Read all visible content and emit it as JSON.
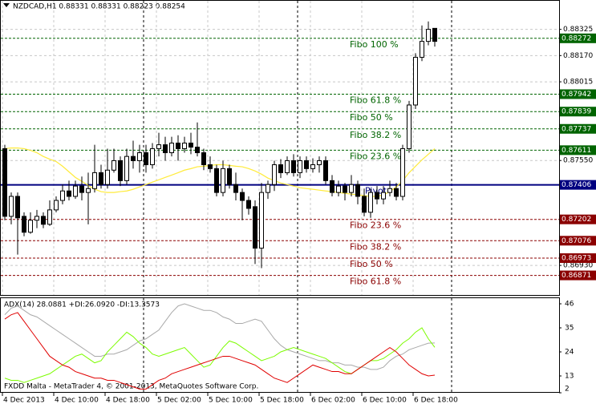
{
  "chart_data": {
    "type": "candlestick",
    "header": "NZDCAD,H1  0.88331 0.88331 0.88223 0.88254",
    "footer": "FXDD Malta - MetaTrader 4, © 2001-2013, MetaQuotes Software Corp.",
    "categories": [
      "4 Dec 2013",
      null,
      null,
      null,
      null,
      null,
      null,
      null,
      "4 Dec 10:00",
      null,
      null,
      null,
      null,
      null,
      null,
      null,
      "4 Dec 18:00",
      null,
      null,
      null,
      null,
      null,
      null,
      null,
      "5 Dec 02:00",
      null,
      null,
      null,
      null,
      null,
      null,
      null,
      "5 Dec 10:00",
      null,
      null,
      null,
      null,
      null,
      null,
      null,
      "5 Dec 18:00",
      null,
      null,
      null,
      null,
      null,
      null,
      null,
      "6 Dec 02:00",
      null,
      null,
      null,
      null,
      null,
      null,
      null,
      "6 Dec 10:00",
      null,
      null,
      null,
      null,
      null,
      null,
      null,
      "6 Dec 18:00",
      null,
      null,
      null
    ],
    "open": [
      0.8762,
      0.8722,
      0.87338,
      0.8722,
      0.87126,
      0.87197,
      0.8722,
      0.87173,
      0.87258,
      0.87314,
      0.8737,
      0.87338,
      0.87399,
      0.87361,
      0.87384,
      0.87478,
      0.87408,
      0.87493,
      0.87549,
      0.87431,
      0.87574,
      0.87549,
      0.87596,
      0.87525,
      0.8762,
      0.87643,
      0.87596,
      0.87653,
      0.8762,
      0.87653,
      0.87629,
      0.87596,
      0.87525,
      0.87502,
      0.87361,
      0.87502,
      0.87408,
      0.87361,
      0.87314,
      0.87277,
      0.87032,
      0.87361,
      0.87408,
      0.87525,
      0.87478,
      0.87549,
      0.87478,
      0.87549,
      0.87502,
      0.87525,
      0.87549,
      0.87431,
      0.87361,
      0.87399,
      0.87361,
      0.87408,
      0.87338,
      0.87244,
      0.87361,
      0.87323,
      0.87361,
      0.87384,
      0.87338,
      0.8762,
      0.87878,
      0.8816,
      0.88254,
      0.88331
    ],
    "high": [
      0.87643,
      0.87361,
      0.87361,
      0.87244,
      0.87244,
      0.87258,
      0.87244,
      0.87314,
      0.87338,
      0.87408,
      0.87431,
      0.87431,
      0.87455,
      0.87478,
      0.87643,
      0.87525,
      0.8762,
      0.8762,
      0.87574,
      0.8762,
      0.87667,
      0.87643,
      0.87643,
      0.87653,
      0.87714,
      0.8769,
      0.8769,
      0.87699,
      0.8769,
      0.87714,
      0.87775,
      0.8762,
      0.87574,
      0.87525,
      0.87549,
      0.87525,
      0.87478,
      0.87384,
      0.87338,
      0.87314,
      0.87417,
      0.87431,
      0.87549,
      0.87558,
      0.87574,
      0.87587,
      0.87574,
      0.87574,
      0.87563,
      0.87574,
      0.87574,
      0.87464,
      0.87431,
      0.87417,
      0.87464,
      0.87431,
      0.87384,
      0.87384,
      0.87399,
      0.87399,
      0.87431,
      0.87417,
      0.87643,
      0.87902,
      0.88184,
      0.88348,
      0.88372,
      0.88331
    ],
    "low": [
      0.87197,
      0.87173,
      0.86994,
      0.87102,
      0.87117,
      0.8715,
      0.8715,
      0.87164,
      0.87244,
      0.87291,
      0.87314,
      0.87323,
      0.87314,
      0.87173,
      0.87361,
      0.87384,
      0.87384,
      0.87478,
      0.87399,
      0.87408,
      0.87502,
      0.87478,
      0.87478,
      0.87502,
      0.87574,
      0.87549,
      0.87574,
      0.87549,
      0.87596,
      0.87587,
      0.87574,
      0.87493,
      0.87478,
      0.87338,
      0.87338,
      0.87384,
      0.87314,
      0.87197,
      0.8723,
      0.86938,
      0.86914,
      0.87323,
      0.8737,
      0.87446,
      0.87464,
      0.87455,
      0.87446,
      0.87478,
      0.87478,
      0.87478,
      0.87408,
      0.87338,
      0.87338,
      0.87314,
      0.87338,
      0.87291,
      0.8722,
      0.87211,
      0.87291,
      0.87291,
      0.87338,
      0.87314,
      0.87314,
      0.87596,
      0.87854,
      0.88137,
      0.88231,
      0.88223
    ],
    "close": [
      0.8722,
      0.87338,
      0.87211,
      0.87126,
      0.87197,
      0.8722,
      0.87173,
      0.87258,
      0.87314,
      0.8737,
      0.87338,
      0.87399,
      0.87361,
      0.87384,
      0.87478,
      0.87408,
      0.87493,
      0.87549,
      0.87431,
      0.87574,
      0.87549,
      0.87596,
      0.87525,
      0.8762,
      0.87643,
      0.87596,
      0.87653,
      0.8762,
      0.87653,
      0.87629,
      0.87596,
      0.87525,
      0.87502,
      0.87361,
      0.87502,
      0.87408,
      0.87361,
      0.87314,
      0.87267,
      0.87032,
      0.87361,
      0.87408,
      0.87525,
      0.87478,
      0.87549,
      0.87478,
      0.87549,
      0.87502,
      0.87525,
      0.87549,
      0.87431,
      0.87361,
      0.87399,
      0.87361,
      0.87408,
      0.87338,
      0.87244,
      0.87361,
      0.87323,
      0.87361,
      0.87384,
      0.87338,
      0.8762,
      0.87878,
      0.8816,
      0.88254,
      0.88325,
      0.88254
    ],
    "ma": {
      "color": "#ffeb3b",
      "values": [
        0.8762,
        0.87624,
        0.87624,
        0.8762,
        0.8761,
        0.87596,
        0.87574,
        0.87558,
        0.87544,
        0.87516,
        0.87483,
        0.8745,
        0.87427,
        0.87403,
        0.8738,
        0.87366,
        0.87361,
        0.87361,
        0.87366,
        0.8737,
        0.8738,
        0.87394,
        0.87408,
        0.87422,
        0.87436,
        0.8745,
        0.87464,
        0.87478,
        0.87493,
        0.87502,
        0.87513,
        0.87516,
        0.87521,
        0.87525,
        0.87525,
        0.87521,
        0.87516,
        0.87513,
        0.87502,
        0.87488,
        0.87469,
        0.87446,
        0.87431,
        0.87417,
        0.87408,
        0.87399,
        0.87389,
        0.87384,
        0.8738,
        0.87375,
        0.8737,
        0.87366,
        0.87361,
        0.87356,
        0.87351,
        0.87347,
        0.87342,
        0.87338,
        0.87338,
        0.87347,
        0.87366,
        0.87394,
        0.87431,
        0.87478,
        0.87516,
        0.87554,
        0.87587,
        0.8762
      ]
    },
    "ylim": [
      0.8676,
      0.88489
    ],
    "yticks": [
      0.88325,
      {
        "value": 0.8817,
        "label": "0.88170"
      },
      0.88015,
      {
        "value": 0.8755,
        "label": "0.87550"
      },
      {
        "value": 0.8693,
        "label": "0.86930"
      }
    ],
    "grid": true,
    "levels": [
      {
        "label": "Fibo 100 %",
        "value": 0.88272,
        "color": "#006400"
      },
      {
        "label": "Fibo 61.8 %",
        "value": 0.87942,
        "color": "#006400"
      },
      {
        "label": "Fibo 50 %",
        "value": 0.87839,
        "color": "#006400"
      },
      {
        "label": "Fibo 38.2 %",
        "value": 0.87737,
        "color": "#006400"
      },
      {
        "label": "Fibo 23.6 %",
        "value": 0.87611,
        "color": "#006400"
      },
      {
        "label": "Pivot",
        "value": 0.87406,
        "color": "#000080"
      },
      {
        "label": "Fibo 23.6 %",
        "value": 0.87202,
        "color": "#8b0000"
      },
      {
        "label": "Fibo 38.2 %",
        "value": 0.87076,
        "color": "#8b0000"
      },
      {
        "label": "Fibo 50 %",
        "value": 0.86973,
        "color": "#8b0000"
      },
      {
        "label": "Fibo 61.8 %",
        "value": 0.86871,
        "color": "#8b0000"
      }
    ],
    "indicator": {
      "title": "ADX(14) 28.0881 +DI:26.0920 -DI:13.3573",
      "ylim": [
        5.3,
        48.57
      ],
      "yticks": [
        46,
        35,
        24,
        13,
        2
      ],
      "series": [
        {
          "color": "#a9a9a9",
          "values": [
            41,
            44,
            45,
            43,
            41,
            40,
            38,
            36,
            34,
            32,
            30,
            28,
            26,
            24,
            22,
            22,
            23,
            23,
            24,
            25,
            27,
            29,
            30,
            32,
            34,
            38,
            42,
            45,
            46,
            45,
            44,
            43,
            43,
            42,
            40,
            39,
            37,
            37,
            38,
            39,
            38,
            34,
            30,
            27,
            25,
            24,
            23,
            22,
            21,
            20,
            20,
            19,
            19,
            18,
            18,
            17,
            17,
            16,
            16,
            17,
            20,
            22,
            23,
            25,
            26,
            27,
            28,
            28.0881
          ]
        },
        {
          "color": "#7cfc00",
          "values": [
            12,
            11,
            11,
            10,
            11,
            12,
            13,
            14,
            16,
            18,
            20,
            22,
            23,
            21,
            19,
            20,
            24,
            27,
            30,
            33,
            31,
            28,
            26,
            23,
            22,
            23,
            24,
            25,
            26,
            23,
            20,
            17,
            18,
            22,
            26,
            29,
            28,
            26,
            24,
            22,
            20,
            21,
            22,
            24,
            25,
            26,
            25,
            24,
            23,
            22,
            21,
            19,
            17,
            15,
            14,
            16,
            18,
            20,
            20,
            21,
            23,
            25,
            28,
            30,
            33,
            35,
            30,
            26.092
          ]
        },
        {
          "color": "#e00000",
          "values": [
            39,
            41,
            42,
            38,
            34,
            30,
            26,
            22,
            20,
            18,
            17,
            15,
            14,
            13,
            12,
            12,
            11,
            11,
            10,
            9,
            8,
            7,
            7,
            9,
            11,
            12,
            14,
            15,
            16,
            17,
            18,
            19,
            20,
            21,
            22,
            22,
            21,
            20,
            19,
            18,
            16,
            14,
            12,
            11,
            10,
            12,
            14,
            16,
            18,
            17,
            16,
            15,
            15,
            14,
            14,
            16,
            18,
            20,
            22,
            24,
            26,
            24,
            21,
            18,
            16,
            14,
            13,
            13.3573
          ]
        }
      ]
    }
  }
}
